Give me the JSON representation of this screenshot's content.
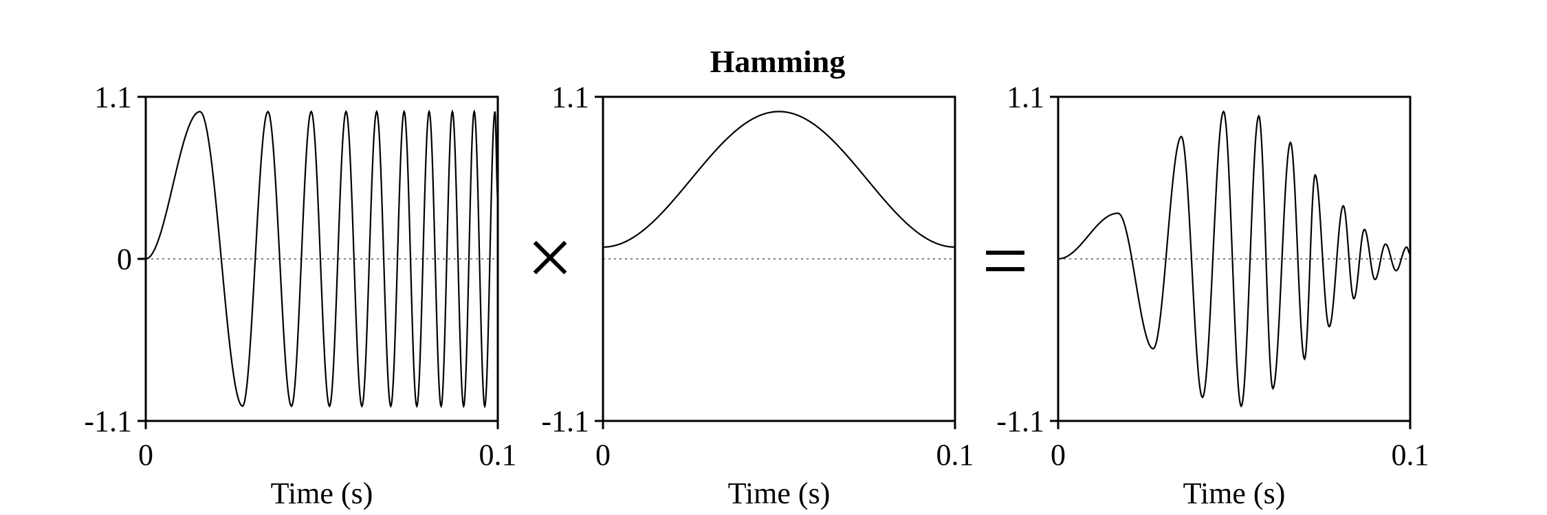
{
  "title": "Hamming",
  "operators": {
    "times": "×",
    "equals": "="
  },
  "chart_data": [
    {
      "type": "line",
      "xlabel": "Time (s)",
      "ylabel": "",
      "xlim": [
        0,
        0.1
      ],
      "ylim": [
        -1.1,
        1.1
      ],
      "x_ticks": [
        "0",
        "0.1"
      ],
      "y_ticks": [
        "1.1",
        "0",
        "-1.1"
      ],
      "signal": "chirp",
      "series": [
        {
          "x": [
            0,
            0.0154,
            0.0275,
            0.0347,
            0.0414,
            0.047,
            0.0522,
            0.0569,
            0.0614,
            0.0656,
            0.0696,
            0.0734,
            0.077,
            0.0805,
            0.0839,
            0.0871,
            0.0903,
            0.0933,
            0.0963,
            0.0992
          ],
          "y": [
            0,
            1.0,
            -1.0,
            1.0,
            -1.0,
            1.0,
            -1.0,
            1.0,
            -1.0,
            1.0,
            -1.0,
            1.0,
            -1.0,
            1.0,
            -1.0,
            1.0,
            -1.0,
            1.0,
            -1.0,
            1.0
          ]
        }
      ]
    },
    {
      "type": "line",
      "xlabel": "Time (s)",
      "ylabel": "",
      "xlim": [
        0,
        0.1
      ],
      "ylim": [
        -1.1,
        1.1
      ],
      "x_ticks": [
        "0",
        "0.1"
      ],
      "y_ticks": [
        "1.1",
        "-1.1"
      ],
      "signal": "window",
      "series": [
        {
          "x": [
            0,
            0.025,
            0.05,
            0.075,
            0.1
          ],
          "y": [
            0.08,
            0.54,
            1.0,
            0.54,
            0.08
          ]
        }
      ]
    },
    {
      "type": "line",
      "xlabel": "Time (s)",
      "ylabel": "",
      "xlim": [
        0,
        0.1
      ],
      "ylim": [
        -1.1,
        1.1
      ],
      "x_ticks": [
        "0",
        "0.1"
      ],
      "y_ticks": [
        "1.1",
        "-1.1"
      ],
      "signal": "product",
      "series": [
        {
          "x": [
            0,
            0.017,
            0.027,
            0.035,
            0.041,
            0.047,
            0.052,
            0.057,
            0.061,
            0.066,
            0.07,
            0.073,
            0.077,
            0.081,
            0.084,
            0.087,
            0.09,
            0.093,
            0.096,
            0.099
          ],
          "y": [
            0,
            0.31,
            -0.61,
            0.83,
            -0.94,
            1.0,
            -1.0,
            0.97,
            -0.88,
            0.79,
            -0.68,
            0.57,
            -0.46,
            0.36,
            -0.27,
            0.2,
            -0.14,
            0.1,
            -0.08,
            0.08
          ]
        }
      ]
    }
  ]
}
